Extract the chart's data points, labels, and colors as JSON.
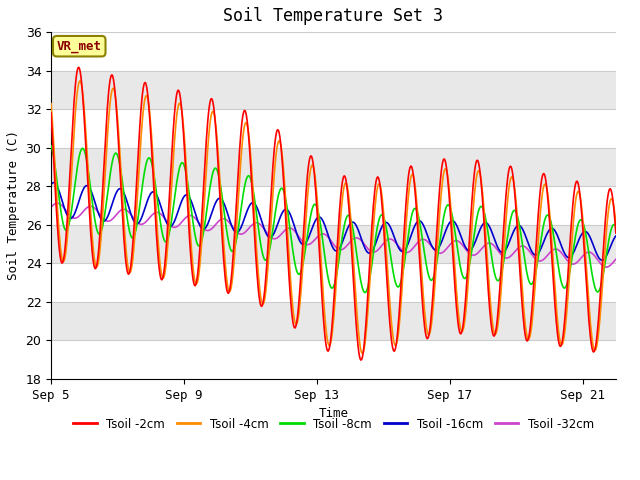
{
  "title": "Soil Temperature Set 3",
  "xlabel": "Time",
  "ylabel": "Soil Temperature (C)",
  "ylim": [
    18,
    36
  ],
  "yticks": [
    18,
    20,
    22,
    24,
    26,
    28,
    30,
    32,
    34,
    36
  ],
  "x_tick_labels": [
    "Sep 5",
    "Sep 9",
    "Sep 13",
    "Sep 17",
    "Sep 21"
  ],
  "x_tick_positions": [
    0,
    4,
    8,
    12,
    16
  ],
  "background_color": "#ffffff",
  "plot_bg_color": "#ffffff",
  "stripe_colors": [
    "#ffffff",
    "#e8e8e8"
  ],
  "grid_color": "#cccccc",
  "annotation_text": "VR_met",
  "annotation_bg": "#ffff99",
  "annotation_border": "#8B8000",
  "legend_labels": [
    "Tsoil -2cm",
    "Tsoil -4cm",
    "Tsoil -8cm",
    "Tsoil -16cm",
    "Tsoil -32cm"
  ],
  "line_colors": [
    "#ff0000",
    "#ff8c00",
    "#00dd00",
    "#0000cc",
    "#cc44cc"
  ],
  "line_widths": [
    1.2,
    1.2,
    1.2,
    1.2,
    1.2
  ],
  "total_days": 17,
  "title_fontsize": 12,
  "axis_label_fontsize": 9,
  "tick_fontsize": 9
}
